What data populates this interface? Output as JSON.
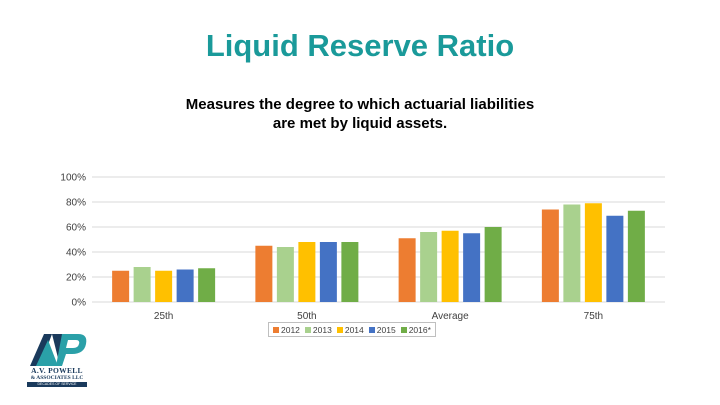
{
  "slide": {
    "title": "Liquid Reserve Ratio",
    "subtitle_line1": "Measures the degree to which actuarial liabilities",
    "subtitle_line2": "are met by liquid assets."
  },
  "logo": {
    "name": "A.V. POWELL",
    "sub": "& ASSOCIATES LLC",
    "tagline": "DECADES OF SERVICE"
  },
  "chart_data": {
    "type": "bar",
    "categories": [
      "25th",
      "50th",
      "Average",
      "75th"
    ],
    "y_ticks": [
      "0%",
      "20%",
      "40%",
      "60%",
      "80%",
      "100%"
    ],
    "ylim": [
      0,
      100
    ],
    "grid": true,
    "legend_position": "bottom",
    "series": [
      {
        "name": "2012",
        "color": "#ed7d31",
        "values": [
          25,
          45,
          51,
          74
        ]
      },
      {
        "name": "2013",
        "color": "#a9d18e",
        "values": [
          28,
          44,
          56,
          78
        ]
      },
      {
        "name": "2014",
        "color": "#ffc000",
        "values": [
          25,
          48,
          57,
          79
        ]
      },
      {
        "name": "2015",
        "color": "#4472c4",
        "values": [
          26,
          48,
          55,
          69
        ]
      },
      {
        "name": "2016*",
        "color": "#70ad47",
        "values": [
          27,
          48,
          60,
          73
        ]
      }
    ]
  }
}
